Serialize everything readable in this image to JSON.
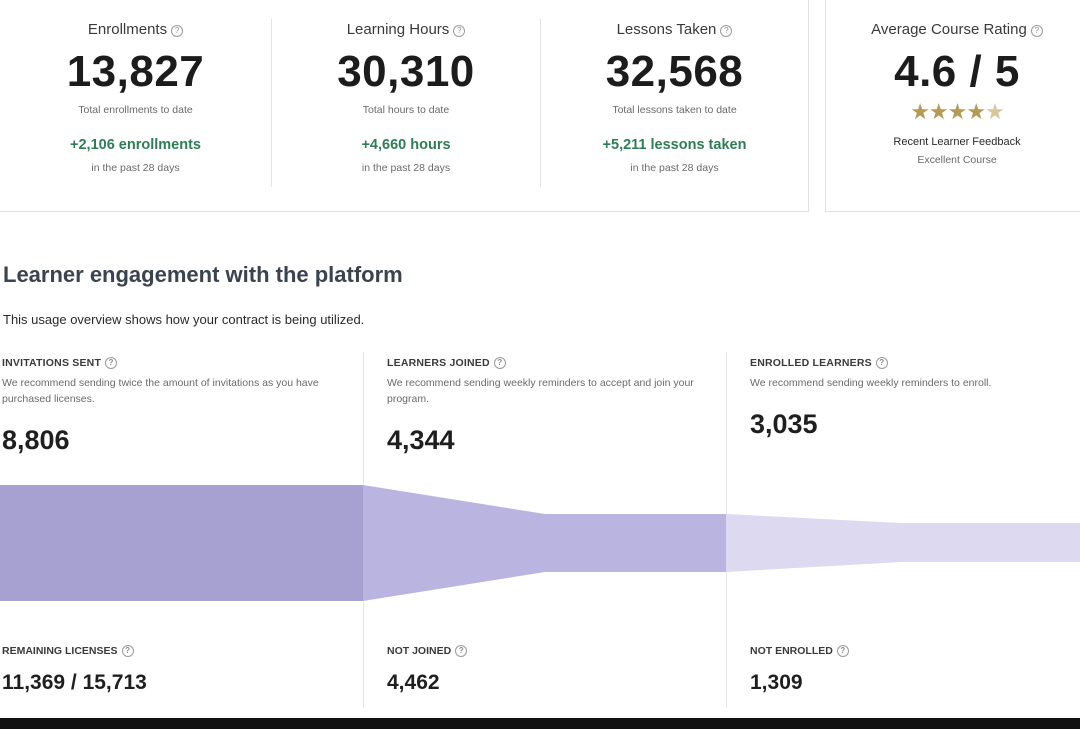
{
  "stats": [
    {
      "title": "Enrollments",
      "value": "13,827",
      "sub": "Total enrollments to date",
      "delta": "+2,106 enrollments",
      "period": "in the past 28 days"
    },
    {
      "title": "Learning Hours",
      "value": "30,310",
      "sub": "Total hours to date",
      "delta": "+4,660 hours",
      "period": "in the past 28 days"
    },
    {
      "title": "Lessons Taken",
      "value": "32,568",
      "sub": "Total lessons taken to date",
      "delta": "+5,211 lessons taken",
      "period": "in the past 28 days"
    }
  ],
  "rating": {
    "title": "Average Course Rating",
    "value": "4.6 / 5",
    "stars": "★★★★",
    "half_star": "★",
    "feedback": "Recent Learner Feedback",
    "verdict": "Excellent Course"
  },
  "help_glyph": "?",
  "engagement": {
    "heading": "Learner engagement with the platform",
    "description": "This usage overview shows how your contract is being utilized.",
    "columns": [
      {
        "label": "INVITATIONS SENT",
        "help": "We recommend sending twice the amount of invitations as you have purchased licenses.",
        "value": "8,806",
        "bottom_label": "REMAINING LICENSES",
        "bottom_value": "11,369 / 15,713"
      },
      {
        "label": "LEARNERS JOINED",
        "help": "We recommend sending weekly reminders to accept and join your program.",
        "value": "4,344",
        "bottom_label": "NOT JOINED",
        "bottom_value": "4,462"
      },
      {
        "label": "ENROLLED LEARNERS",
        "help": "We recommend sending weekly reminders to enroll.",
        "value": "3,035",
        "bottom_label": "NOT ENROLLED",
        "bottom_value": "1,309"
      }
    ],
    "funnel_colors": [
      "#a7a1d2",
      "#bab4e1",
      "#dcd9f1"
    ]
  }
}
